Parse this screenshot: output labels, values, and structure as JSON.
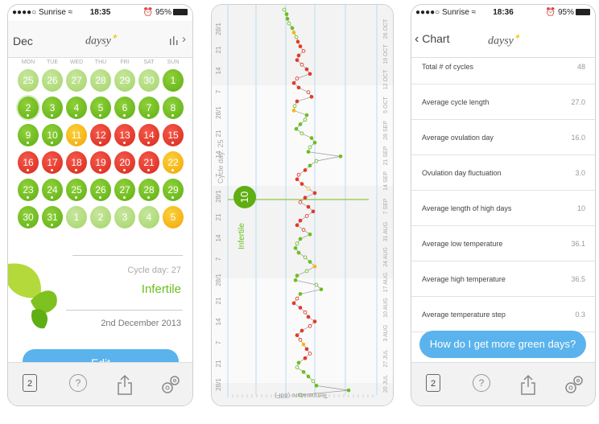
{
  "colors": {
    "green": "#6cbf1e",
    "red": "#e23a2b",
    "yellow": "#f5b815",
    "light_green": "#b6dd84",
    "blue": "#5ab3ec"
  },
  "status": {
    "carrier": "●●●●○ Sunrise ≈",
    "time1": "18:35",
    "time2": "18:36",
    "battery": "95%",
    "alarm": "⏰"
  },
  "calendar": {
    "month": "Dec",
    "logo": "daysy",
    "weekdays": [
      "MON",
      "TUE",
      "WED",
      "THU",
      "FRI",
      "SAT",
      "SUN"
    ],
    "weeks": [
      [
        {
          "d": "25",
          "c": "lg"
        },
        {
          "d": "26",
          "c": "lg"
        },
        {
          "d": "27",
          "c": "lg"
        },
        {
          "d": "28",
          "c": "lg"
        },
        {
          "d": "29",
          "c": "lg"
        },
        {
          "d": "30",
          "c": "lg"
        },
        {
          "d": "1",
          "c": "g"
        }
      ],
      [
        {
          "d": "2",
          "c": "g",
          "dot": true
        },
        {
          "d": "3",
          "c": "g",
          "dot": true
        },
        {
          "d": "4",
          "c": "g",
          "dot": true
        },
        {
          "d": "5",
          "c": "g",
          "dot": true
        },
        {
          "d": "6",
          "c": "g",
          "dot": true
        },
        {
          "d": "7",
          "c": "g",
          "dot": true
        },
        {
          "d": "8",
          "c": "g",
          "dot": true
        }
      ],
      [
        {
          "d": "9",
          "c": "g",
          "dot": true
        },
        {
          "d": "10",
          "c": "g",
          "dot": true
        },
        {
          "d": "11",
          "c": "y",
          "dot": true
        },
        {
          "d": "12",
          "c": "r",
          "dot": true
        },
        {
          "d": "13",
          "c": "r",
          "dot": true
        },
        {
          "d": "14",
          "c": "r",
          "dot": true
        },
        {
          "d": "15",
          "c": "r",
          "dot": true
        }
      ],
      [
        {
          "d": "16",
          "c": "r",
          "dot": true
        },
        {
          "d": "17",
          "c": "r",
          "dot": true
        },
        {
          "d": "18",
          "c": "r",
          "dot": true
        },
        {
          "d": "19",
          "c": "r",
          "dot": true
        },
        {
          "d": "20",
          "c": "r",
          "dot": true
        },
        {
          "d": "21",
          "c": "r",
          "dot": true
        },
        {
          "d": "22",
          "c": "y",
          "dot": true
        }
      ],
      [
        {
          "d": "23",
          "c": "g",
          "dot": true
        },
        {
          "d": "24",
          "c": "g",
          "dot": true
        },
        {
          "d": "25",
          "c": "g",
          "dot": true
        },
        {
          "d": "26",
          "c": "g",
          "dot": true
        },
        {
          "d": "27",
          "c": "g",
          "dot": true
        },
        {
          "d": "28",
          "c": "g",
          "dot": true
        },
        {
          "d": "29",
          "c": "g",
          "dot": true
        }
      ],
      [
        {
          "d": "30",
          "c": "g",
          "dot": true
        },
        {
          "d": "31",
          "c": "g",
          "dot": true
        },
        {
          "d": "1",
          "c": "lg"
        },
        {
          "d": "2",
          "c": "lg"
        },
        {
          "d": "3",
          "c": "lg"
        },
        {
          "d": "4",
          "c": "lg"
        },
        {
          "d": "5",
          "c": "y"
        }
      ]
    ],
    "cycle_day": "Cycle day: 27",
    "fertility": "Infertile",
    "date": "2nd December 2013",
    "edit_button": "Edit"
  },
  "tabbar": {
    "calendar_day": "2",
    "help": "?"
  },
  "chart": {
    "cycle_day": "Cycle day: 25",
    "day_badge": "10",
    "fertility": "Infertile",
    "left_labels": [
      "28/1",
      "21",
      "14",
      "7",
      "28/1",
      "21",
      "14",
      "7",
      "28/1",
      "21",
      "14",
      "7",
      "28/1",
      "21",
      "14",
      "7",
      "21",
      "28/1"
    ],
    "right_labels": [
      "26 OCT",
      "19 OCT",
      "12 OCT",
      "5 OCT",
      "28 SEP",
      "21 SEP",
      "14 SEP",
      "7 SEP",
      "31 AUG",
      "24 AUG",
      "17 AUG",
      "10 AUG",
      "3 AUG",
      "27 JUL",
      "20 JUL"
    ],
    "bottom_label": "Temperature (88F)"
  },
  "stats": {
    "back_label": "Chart",
    "rows": [
      {
        "label": "Total # of cycles",
        "value": "48"
      },
      {
        "label": "Average cycle length",
        "value": "27.0"
      },
      {
        "label": "Average ovulation day",
        "value": "16.0"
      },
      {
        "label": "Ovulation day fluctuation",
        "value": "3.0"
      },
      {
        "label": "Average length of high days",
        "value": "10"
      },
      {
        "label": "Average low temperature",
        "value": "36.1"
      },
      {
        "label": "Average high temperature",
        "value": "36.5"
      },
      {
        "label": "Average temperature step",
        "value": "0.3"
      }
    ],
    "cta": "How do I get more green days?"
  }
}
